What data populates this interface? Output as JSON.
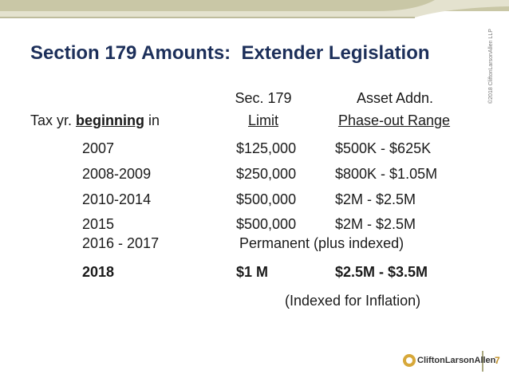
{
  "header": {
    "title": "Section 179 Amounts:  Extender Legislation"
  },
  "table": {
    "head": {
      "col0": [
        "Tax yr. ",
        "beginning",
        " in"
      ],
      "col1": [
        "Sec. 179",
        "Limit"
      ],
      "col2": [
        "Asset Addn.",
        "Phase-out Range"
      ]
    },
    "rows": [
      [
        "2007",
        "$125,000",
        "$500K - $625K"
      ],
      [
        "2008-2009",
        "$250,000",
        "$800K - $1.05M"
      ],
      [
        "2010-2014",
        "$500,000",
        "$2M - $2.5M"
      ],
      [
        "2015",
        "$500,000",
        "$2M - $2.5M"
      ],
      [
        "2016 - 2017",
        "Permanent (plus indexed)"
      ],
      [
        "2018",
        "$1 M",
        "$2.5M - $3.5M"
      ]
    ],
    "note": "(Indexed for Inflation)"
  },
  "footer": {
    "logo": "CliftonLarsonAllen",
    "page": "7",
    "copyright": "©2018 CliftonLarsonAllen LLP"
  }
}
